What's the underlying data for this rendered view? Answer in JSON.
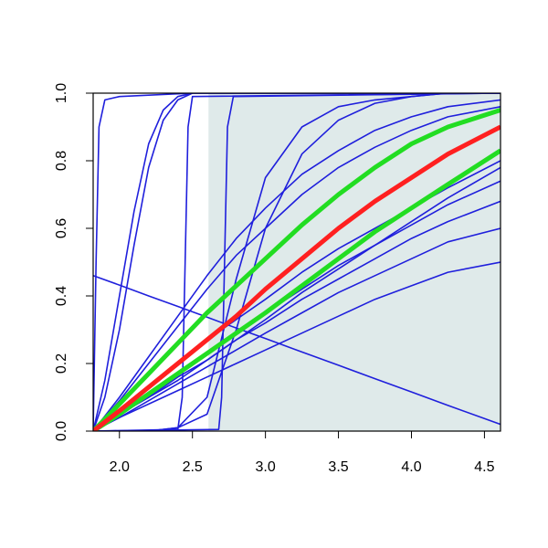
{
  "chart_data": {
    "type": "line",
    "xlim": [
      1.82,
      4.61
    ],
    "ylim": [
      0,
      1
    ],
    "xticks": [
      {
        "value": 2,
        "label": "2.0"
      },
      2.5,
      {
        "value": 3,
        "label": "3.0"
      },
      3.5,
      {
        "value": 4,
        "label": "4.0"
      },
      4.5
    ],
    "yticks": [
      {
        "value": 0,
        "label": "0.0"
      },
      0.2,
      0.4,
      0.6,
      0.8,
      {
        "value": 1,
        "label": "1.0"
      }
    ],
    "shade": {
      "x": [
        2.61,
        4.61
      ],
      "color": "#dfeaea"
    },
    "x": [
      1.82,
      2.0,
      2.2,
      2.4,
      2.6,
      2.8,
      3.0,
      3.25,
      3.5,
      3.75,
      4.0,
      4.25,
      4.61
    ],
    "series": [
      {
        "color": "#1f1fdc",
        "values": [
          0,
          0.04,
          0.08,
          0.12,
          0.16,
          0.2,
          0.24,
          0.29,
          0.34,
          0.39,
          0.43,
          0.47,
          0.5
        ]
      },
      {
        "color": "#1f1fdc",
        "values": [
          0,
          0.04,
          0.09,
          0.14,
          0.19,
          0.24,
          0.29,
          0.35,
          0.41,
          0.46,
          0.51,
          0.56,
          0.6
        ]
      },
      {
        "color": "#1f1fdc",
        "values": [
          0,
          0.05,
          0.1,
          0.16,
          0.21,
          0.27,
          0.32,
          0.39,
          0.45,
          0.51,
          0.57,
          0.62,
          0.68
        ]
      },
      {
        "color": "#1f1fdc",
        "values": [
          0,
          0.05,
          0.11,
          0.17,
          0.23,
          0.29,
          0.35,
          0.42,
          0.49,
          0.55,
          0.61,
          0.67,
          0.74
        ]
      },
      {
        "color": "#1f1fdc",
        "values": [
          0,
          0.05,
          0.1,
          0.15,
          0.21,
          0.27,
          0.33,
          0.41,
          0.48,
          0.55,
          0.62,
          0.69,
          0.78
        ]
      },
      {
        "color": "#1f1fdc",
        "values": [
          0,
          0.06,
          0.13,
          0.2,
          0.27,
          0.33,
          0.39,
          0.47,
          0.54,
          0.6,
          0.66,
          0.72,
          0.8
        ]
      },
      {
        "color": "#1f1fdc",
        "values": [
          0,
          0.09,
          0.2,
          0.31,
          0.42,
          0.52,
          0.6,
          0.7,
          0.78,
          0.84,
          0.89,
          0.93,
          0.96
        ]
      },
      {
        "color": "#1f1fdc",
        "values": [
          0,
          0.1,
          0.22,
          0.34,
          0.46,
          0.57,
          0.66,
          0.76,
          0.83,
          0.89,
          0.93,
          0.96,
          0.98
        ]
      },
      {
        "color": "#1f1fdc",
        "values": [
          0,
          0,
          0,
          0.01,
          0.1,
          0.45,
          0.75,
          0.9,
          0.96,
          0.98,
          0.99,
          1,
          1
        ]
      },
      {
        "color": "#1f1fdc",
        "values": [
          0,
          0,
          0,
          0.01,
          0.05,
          0.3,
          0.6,
          0.82,
          0.92,
          0.97,
          0.99,
          1,
          1
        ]
      },
      {
        "color": "#1f1fdc",
        "values": [
          0.46,
          0.432,
          0.4,
          0.369,
          0.337,
          0.305,
          0.274,
          0.234,
          0.195,
          0.155,
          0.116,
          0.076,
          0.02
        ]
      },
      {
        "color": "#1f1fdc",
        "x": [
          1.82,
          1.84,
          1.86,
          1.9,
          2.0,
          2.5,
          4.61
        ],
        "values": [
          0,
          0.5,
          0.9,
          0.98,
          0.99,
          1,
          1
        ]
      },
      {
        "color": "#1f1fdc",
        "x": [
          1.82,
          1.9,
          2.0,
          2.1,
          2.2,
          2.3,
          2.4,
          2.5,
          4.61
        ],
        "values": [
          0,
          0.15,
          0.4,
          0.65,
          0.85,
          0.95,
          0.99,
          1,
          1
        ]
      },
      {
        "color": "#1f1fdc",
        "x": [
          1.82,
          1.9,
          2.0,
          2.1,
          2.2,
          2.3,
          2.4,
          2.5,
          4.61
        ],
        "values": [
          0,
          0.1,
          0.3,
          0.55,
          0.78,
          0.92,
          0.98,
          1,
          1
        ]
      },
      {
        "color": "#1f1fdc",
        "x": [
          1.82,
          2.4,
          2.43,
          2.45,
          2.47,
          2.5,
          4.61
        ],
        "values": [
          0,
          0.005,
          0.1,
          0.5,
          0.9,
          0.99,
          1
        ]
      },
      {
        "color": "#1f1fdc",
        "x": [
          1.82,
          2.68,
          2.7,
          2.72,
          2.74,
          2.78,
          4.61
        ],
        "values": [
          0,
          0.005,
          0.1,
          0.5,
          0.9,
          0.99,
          1
        ]
      },
      {
        "color": "#22dd22",
        "width": 5,
        "values": [
          0,
          0.08,
          0.17,
          0.26,
          0.35,
          0.43,
          0.51,
          0.61,
          0.7,
          0.78,
          0.85,
          0.9,
          0.95
        ]
      },
      {
        "color": "#22dd22",
        "width": 5,
        "values": [
          0,
          0.05,
          0.11,
          0.17,
          0.23,
          0.29,
          0.35,
          0.43,
          0.51,
          0.59,
          0.66,
          0.73,
          0.83
        ]
      },
      {
        "color": "#ff2020",
        "width": 5,
        "values": [
          0,
          0.06,
          0.13,
          0.2,
          0.27,
          0.34,
          0.42,
          0.51,
          0.6,
          0.68,
          0.75,
          0.82,
          0.9
        ]
      }
    ]
  }
}
